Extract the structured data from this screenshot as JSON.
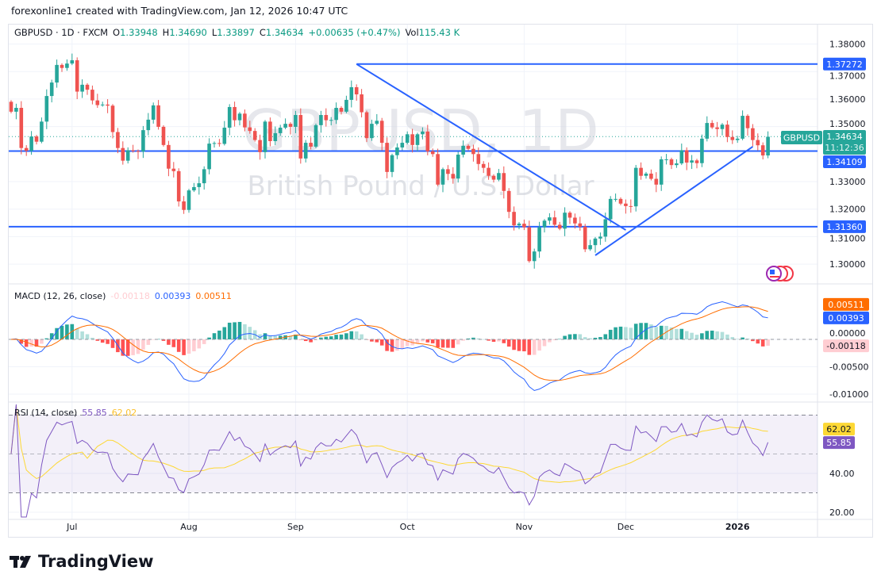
{
  "caption": "forexonline1 created with TradingView.com, Jan 12, 2026 10:47 UTC",
  "legend": {
    "symbol": "GBPUSD · 1D · FXCM",
    "open_label": "O",
    "open": "1.33948",
    "high_label": "H",
    "high": "1.34690",
    "low_label": "L",
    "low": "1.33897",
    "close_label": "C",
    "close": "1.34634",
    "change": "+0.00635 (+0.47%)",
    "vol_label": "Vol",
    "vol": "115.43 K"
  },
  "watermark": {
    "title": "GBPUSD, 1D",
    "subtitle": "British Pound / U.S. Dollar"
  },
  "price_tag": {
    "symbol": "GBPUSD",
    "price": "1.34634",
    "countdown": "11:12:36"
  },
  "colors": {
    "up": "#26a69a",
    "down": "#ef5350",
    "line": "#2962ff",
    "macd": "#2962ff",
    "signal": "#ff6d00",
    "rsi": "#7e57c2",
    "rsi_ma": "#fdd835"
  },
  "chart_data": [
    {
      "type": "candlestick",
      "title": "GBPUSD, 1D",
      "first_open": 1.359,
      "closes": [
        1.3554,
        1.3568,
        1.3422,
        1.3412,
        1.3464,
        1.3445,
        1.3518,
        1.3611,
        1.366,
        1.3724,
        1.3713,
        1.3729,
        1.3741,
        1.3627,
        1.3652,
        1.3634,
        1.3595,
        1.3578,
        1.358,
        1.3576,
        1.348,
        1.3422,
        1.3376,
        1.3414,
        1.3411,
        1.3409,
        1.3487,
        1.3525,
        1.3577,
        1.3499,
        1.3433,
        1.3347,
        1.3338,
        1.3228,
        1.3197,
        1.3268,
        1.328,
        1.3294,
        1.3345,
        1.3438,
        1.344,
        1.3437,
        1.3496,
        1.3571,
        1.3523,
        1.3547,
        1.3497,
        1.3484,
        1.3451,
        1.3407,
        1.3518,
        1.3447,
        1.3476,
        1.3496,
        1.351,
        1.3499,
        1.3542,
        1.3384,
        1.3441,
        1.3427,
        1.3505,
        1.3542,
        1.3523,
        1.3524,
        1.3568,
        1.3554,
        1.3597,
        1.3643,
        1.3617,
        1.3552,
        1.3458,
        1.351,
        1.3521,
        1.3441,
        1.3335,
        1.3396,
        1.3424,
        1.3441,
        1.3472,
        1.3433,
        1.3472,
        1.3482,
        1.341,
        1.34,
        1.3289,
        1.3345,
        1.3328,
        1.3311,
        1.3398,
        1.343,
        1.3419,
        1.34,
        1.3364,
        1.335,
        1.3321,
        1.3307,
        1.3331,
        1.3266,
        1.319,
        1.3141,
        1.3147,
        1.3134,
        1.3011,
        1.3046,
        1.3134,
        1.3158,
        1.317,
        1.3143,
        1.3129,
        1.3187,
        1.3169,
        1.3148,
        1.3136,
        1.3054,
        1.3069,
        1.3093,
        1.31,
        1.3163,
        1.3237,
        1.3237,
        1.322,
        1.3211,
        1.321,
        1.335,
        1.3321,
        1.3329,
        1.331,
        1.3289,
        1.3381,
        1.3381,
        1.336,
        1.3366,
        1.3414,
        1.3369,
        1.3377,
        1.3367,
        1.3456,
        1.3513,
        1.3497,
        1.3491,
        1.3507,
        1.3462,
        1.3451,
        1.3456,
        1.3539,
        1.3494,
        1.3451,
        1.3432,
        1.3395,
        1.3463
      ],
      "ylim": [
        1.295,
        1.3875
      ],
      "y_ticks": [
        "1.38000",
        "1.37000",
        "1.36000",
        "1.35000",
        "1.33000",
        "1.32000",
        "1.31000",
        "1.30000"
      ],
      "x_ticks": [
        {
          "label": "Jul",
          "bar": 12
        },
        {
          "label": "Aug",
          "bar": 35
        },
        {
          "label": "Sep",
          "bar": 56
        },
        {
          "label": "Oct",
          "bar": 78
        },
        {
          "label": "Nov",
          "bar": 101
        },
        {
          "label": "Dec",
          "bar": 121
        },
        {
          "label": "2026",
          "bar": 143
        }
      ],
      "horizontal_levels": [
        {
          "price": 1.37272,
          "label": "1.37272",
          "from_bar": 68
        },
        {
          "price": 1.34109,
          "label": "1.34109",
          "from_bar": -2
        },
        {
          "price": 1.3136,
          "label": "1.31360",
          "from_bar": -2
        }
      ],
      "trendlines": [
        {
          "from": [
            68,
            1.3727
          ],
          "to": [
            121,
            1.3124
          ]
        },
        {
          "from": [
            115,
            1.3032
          ],
          "to": [
            146,
            1.3427
          ]
        }
      ],
      "last_price": 1.34634,
      "grid": true
    },
    {
      "type": "macd",
      "title": "MACD (12, 26, close)",
      "values": {
        "histogram": "-0.00118",
        "macd": "0.00393",
        "signal": "0.00511"
      },
      "params": {
        "fast": 12,
        "slow": 26,
        "signal": 9
      },
      "ylim": [
        -0.0113,
        0.0098
      ],
      "y_ticks": [
        "0.00000",
        "-0.00500",
        "-0.01000"
      ]
    },
    {
      "type": "rsi",
      "title": "RSI (14, close)",
      "values": {
        "rsi": "55.85",
        "rsi_ma": "62.02"
      },
      "params": {
        "length": 14,
        "ma_length": 14
      },
      "bands": [
        70,
        50,
        30
      ],
      "ylim": [
        16,
        76
      ],
      "y_ticks": [
        "40.00",
        "20.00"
      ]
    }
  ],
  "footer": {
    "brand": "TradingView"
  }
}
